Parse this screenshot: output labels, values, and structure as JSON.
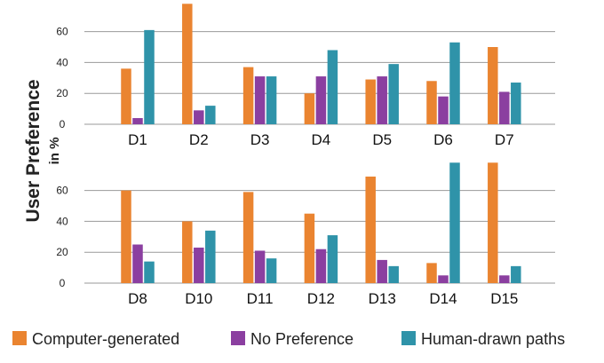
{
  "y_label_line1": "User Preference",
  "y_label_line2": "in %",
  "chart_data": [
    {
      "type": "bar",
      "categories": [
        "D1",
        "D2",
        "D3",
        "D4",
        "D5",
        "D6",
        "D7"
      ],
      "series": [
        {
          "name": "Computer-generated",
          "color": "#ea8430",
          "values": [
            36,
            78,
            37,
            20,
            29,
            28,
            50
          ]
        },
        {
          "name": "No Preference",
          "color": "#8b3fa0",
          "values": [
            4,
            9,
            31,
            31,
            31,
            18,
            21
          ]
        },
        {
          "name": "Human-drawn paths",
          "color": "#2f93a9",
          "values": [
            61,
            12,
            31,
            48,
            39,
            53,
            27
          ]
        }
      ],
      "yticks": [
        0,
        20,
        40,
        60
      ],
      "ylim": [
        0,
        78
      ],
      "grid": true
    },
    {
      "type": "bar",
      "categories": [
        "D8",
        "D10",
        "D11",
        "D12",
        "D13",
        "D14",
        "D15"
      ],
      "series": [
        {
          "name": "Computer-generated",
          "color": "#ea8430",
          "values": [
            60,
            40,
            59,
            45,
            69,
            13,
            78
          ]
        },
        {
          "name": "No Preference",
          "color": "#8b3fa0",
          "values": [
            25,
            23,
            21,
            22,
            15,
            5,
            5
          ]
        },
        {
          "name": "Human-drawn paths",
          "color": "#2f93a9",
          "values": [
            14,
            34,
            16,
            31,
            11,
            78,
            11
          ]
        }
      ],
      "yticks": [
        0,
        20,
        40,
        60
      ],
      "ylim": [
        0,
        78
      ],
      "grid": true
    }
  ],
  "legend": [
    {
      "label": "Computer-generated",
      "color": "#ea8430"
    },
    {
      "label": "No Preference",
      "color": "#8b3fa0"
    },
    {
      "label": "Human-drawn paths",
      "color": "#2f93a9"
    }
  ]
}
